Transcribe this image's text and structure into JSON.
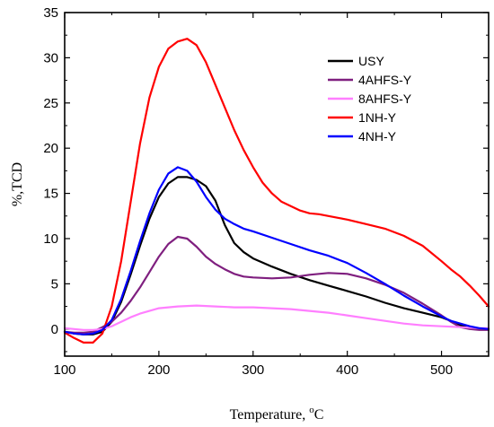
{
  "chart_data": {
    "type": "line",
    "xlabel": "Temperature, °C",
    "ylabel": "%,TCD",
    "xlim": [
      100,
      550
    ],
    "ylim": [
      -3,
      35
    ],
    "x_ticks": [
      100,
      200,
      300,
      400,
      500
    ],
    "y_ticks": [
      0,
      5,
      10,
      15,
      20,
      25,
      30,
      35
    ],
    "grid": false,
    "legend_position": "top-right",
    "series": [
      {
        "name": "USY",
        "color": "#000000",
        "points": [
          [
            100,
            -0.3
          ],
          [
            110,
            -0.5
          ],
          [
            120,
            -0.6
          ],
          [
            130,
            -0.6
          ],
          [
            140,
            -0.3
          ],
          [
            150,
            0.8
          ],
          [
            160,
            3
          ],
          [
            170,
            6
          ],
          [
            180,
            9.2
          ],
          [
            190,
            12.2
          ],
          [
            200,
            14.6
          ],
          [
            210,
            16.1
          ],
          [
            220,
            16.8
          ],
          [
            230,
            16.8
          ],
          [
            240,
            16.5
          ],
          [
            250,
            15.8
          ],
          [
            260,
            14.2
          ],
          [
            270,
            11.5
          ],
          [
            280,
            9.5
          ],
          [
            290,
            8.5
          ],
          [
            300,
            7.8
          ],
          [
            320,
            6.9
          ],
          [
            340,
            6.1
          ],
          [
            360,
            5.4
          ],
          [
            380,
            4.8
          ],
          [
            400,
            4.2
          ],
          [
            420,
            3.6
          ],
          [
            440,
            2.9
          ],
          [
            460,
            2.3
          ],
          [
            480,
            1.8
          ],
          [
            500,
            1.3
          ],
          [
            510,
            0.9
          ],
          [
            520,
            0.4
          ],
          [
            530,
            0.1
          ],
          [
            540,
            0
          ],
          [
            550,
            0
          ]
        ]
      },
      {
        "name": "4AHFS-Y",
        "color": "#7f1f7f",
        "points": [
          [
            100,
            -0.3
          ],
          [
            110,
            -0.4
          ],
          [
            120,
            -0.4
          ],
          [
            130,
            -0.3
          ],
          [
            140,
            0.2
          ],
          [
            150,
            0.8
          ],
          [
            160,
            1.8
          ],
          [
            170,
            3.1
          ],
          [
            180,
            4.6
          ],
          [
            190,
            6.3
          ],
          [
            200,
            8
          ],
          [
            210,
            9.4
          ],
          [
            220,
            10.2
          ],
          [
            230,
            10
          ],
          [
            240,
            9.1
          ],
          [
            250,
            8
          ],
          [
            260,
            7.2
          ],
          [
            270,
            6.6
          ],
          [
            280,
            6.1
          ],
          [
            290,
            5.8
          ],
          [
            300,
            5.7
          ],
          [
            320,
            5.6
          ],
          [
            340,
            5.7
          ],
          [
            360,
            6
          ],
          [
            380,
            6.2
          ],
          [
            400,
            6.1
          ],
          [
            420,
            5.6
          ],
          [
            440,
            4.9
          ],
          [
            460,
            4
          ],
          [
            480,
            2.8
          ],
          [
            500,
            1.5
          ],
          [
            510,
            0.8
          ],
          [
            520,
            0.2
          ],
          [
            530,
            0
          ],
          [
            540,
            -0.1
          ],
          [
            550,
            -0.1
          ]
        ]
      },
      {
        "name": "8AHFS-Y",
        "color": "#ff7fff",
        "points": [
          [
            100,
            0.1
          ],
          [
            110,
            0
          ],
          [
            120,
            -0.1
          ],
          [
            130,
            -0.1
          ],
          [
            140,
            0
          ],
          [
            150,
            0.3
          ],
          [
            160,
            0.8
          ],
          [
            170,
            1.3
          ],
          [
            180,
            1.7
          ],
          [
            190,
            2
          ],
          [
            200,
            2.3
          ],
          [
            220,
            2.5
          ],
          [
            240,
            2.6
          ],
          [
            260,
            2.5
          ],
          [
            280,
            2.4
          ],
          [
            300,
            2.4
          ],
          [
            320,
            2.3
          ],
          [
            340,
            2.2
          ],
          [
            360,
            2
          ],
          [
            380,
            1.8
          ],
          [
            400,
            1.5
          ],
          [
            420,
            1.2
          ],
          [
            440,
            0.9
          ],
          [
            460,
            0.6
          ],
          [
            480,
            0.4
          ],
          [
            500,
            0.3
          ],
          [
            520,
            0.2
          ],
          [
            540,
            0.1
          ],
          [
            550,
            0.1
          ]
        ]
      },
      {
        "name": "1NH-Y",
        "color": "#ff0000",
        "points": [
          [
            100,
            -0.4
          ],
          [
            110,
            -1
          ],
          [
            120,
            -1.5
          ],
          [
            130,
            -1.5
          ],
          [
            140,
            -0.5
          ],
          [
            150,
            2.5
          ],
          [
            160,
            7.5
          ],
          [
            170,
            14
          ],
          [
            180,
            20.5
          ],
          [
            190,
            25.6
          ],
          [
            200,
            29
          ],
          [
            210,
            31
          ],
          [
            220,
            31.8
          ],
          [
            230,
            32.1
          ],
          [
            240,
            31.4
          ],
          [
            250,
            29.5
          ],
          [
            260,
            27
          ],
          [
            270,
            24.5
          ],
          [
            280,
            22
          ],
          [
            290,
            19.8
          ],
          [
            300,
            17.9
          ],
          [
            310,
            16.2
          ],
          [
            320,
            15
          ],
          [
            330,
            14.1
          ],
          [
            340,
            13.6
          ],
          [
            350,
            13.1
          ],
          [
            360,
            12.8
          ],
          [
            370,
            12.7
          ],
          [
            380,
            12.5
          ],
          [
            390,
            12.3
          ],
          [
            400,
            12.1
          ],
          [
            420,
            11.6
          ],
          [
            440,
            11.1
          ],
          [
            460,
            10.3
          ],
          [
            480,
            9.2
          ],
          [
            500,
            7.5
          ],
          [
            510,
            6.6
          ],
          [
            520,
            5.8
          ],
          [
            530,
            4.8
          ],
          [
            540,
            3.7
          ],
          [
            550,
            2.5
          ]
        ]
      },
      {
        "name": "4NH-Y",
        "color": "#0000ff",
        "points": [
          [
            100,
            -0.3
          ],
          [
            110,
            -0.5
          ],
          [
            120,
            -0.6
          ],
          [
            130,
            -0.5
          ],
          [
            140,
            -0.1
          ],
          [
            150,
            1
          ],
          [
            160,
            3.3
          ],
          [
            170,
            6.4
          ],
          [
            180,
            9.7
          ],
          [
            190,
            12.8
          ],
          [
            200,
            15.4
          ],
          [
            210,
            17.2
          ],
          [
            220,
            17.9
          ],
          [
            230,
            17.5
          ],
          [
            240,
            16.3
          ],
          [
            250,
            14.6
          ],
          [
            260,
            13.2
          ],
          [
            270,
            12.2
          ],
          [
            280,
            11.6
          ],
          [
            290,
            11.1
          ],
          [
            300,
            10.8
          ],
          [
            320,
            10.1
          ],
          [
            340,
            9.4
          ],
          [
            360,
            8.7
          ],
          [
            380,
            8.1
          ],
          [
            400,
            7.3
          ],
          [
            420,
            6.2
          ],
          [
            440,
            5
          ],
          [
            460,
            3.7
          ],
          [
            480,
            2.5
          ],
          [
            500,
            1.4
          ],
          [
            510,
            0.9
          ],
          [
            520,
            0.6
          ],
          [
            530,
            0.3
          ],
          [
            540,
            0.1
          ],
          [
            550,
            0
          ]
        ]
      }
    ]
  }
}
